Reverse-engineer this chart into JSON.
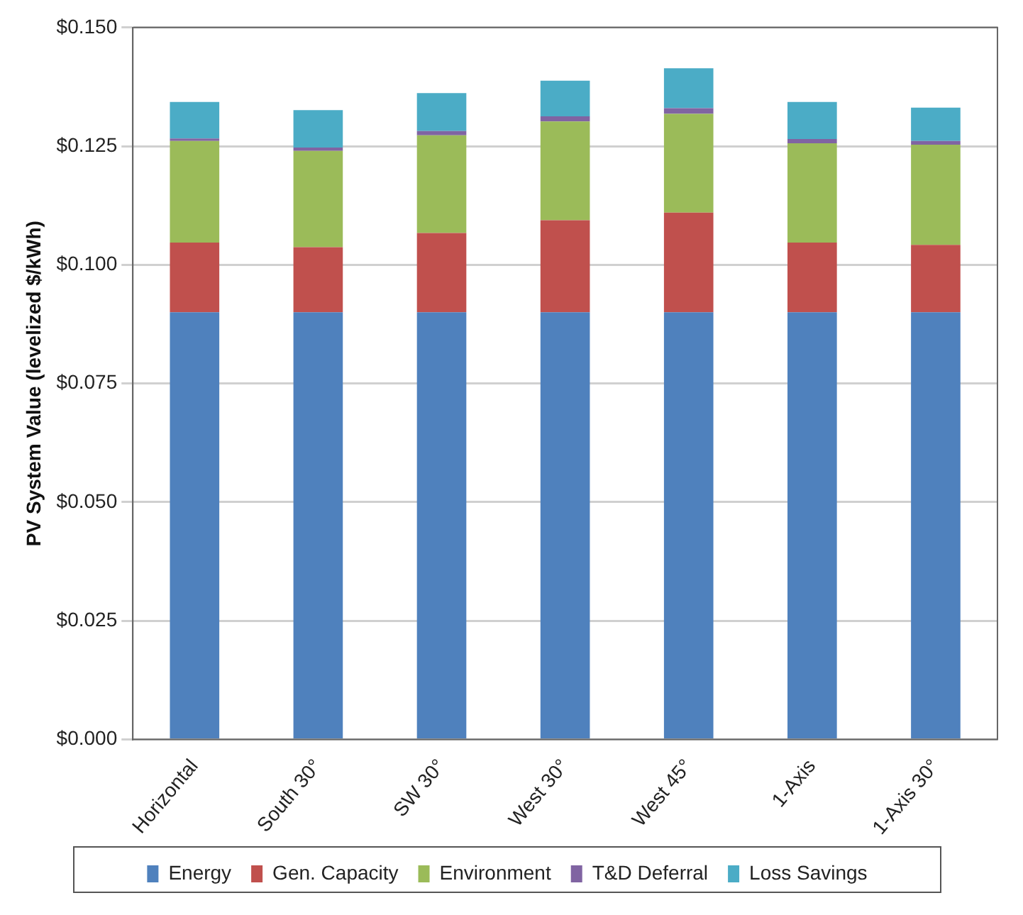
{
  "chart_data": {
    "type": "bar",
    "ylabel": "PV System Value (levelized $/kWh)",
    "categories": [
      "Horizontal",
      "South 30°",
      "SW 30°",
      "West 30°",
      "West 45°",
      "1-Axis",
      "1-Axis 30°"
    ],
    "series": [
      {
        "name": "Energy",
        "color": "#4f81bd",
        "values": [
          0.09,
          0.09,
          0.09,
          0.09,
          0.09,
          0.09,
          0.09
        ]
      },
      {
        "name": "Gen. Capacity",
        "color": "#c0504d",
        "values": [
          0.0147,
          0.0137,
          0.0167,
          0.0194,
          0.021,
          0.0147,
          0.0142
        ]
      },
      {
        "name": "Environment",
        "color": "#9bbb59",
        "values": [
          0.0214,
          0.0203,
          0.0206,
          0.0208,
          0.0208,
          0.0209,
          0.0211
        ]
      },
      {
        "name": "T&D Deferral",
        "color": "#8064a2",
        "values": [
          0.0005,
          0.0007,
          0.0009,
          0.0011,
          0.0012,
          0.0009,
          0.0008
        ]
      },
      {
        "name": "Loss Savings",
        "color": "#4bacc6",
        "values": [
          0.0077,
          0.0079,
          0.008,
          0.0075,
          0.0084,
          0.0078,
          0.007
        ]
      }
    ],
    "stacked": true,
    "ylim": [
      0,
      0.15
    ],
    "yticks": [
      {
        "value": 0,
        "label": "$0.000"
      },
      {
        "value": 0.025,
        "label": "$0.025"
      },
      {
        "value": 0.05,
        "label": "$0.050"
      },
      {
        "value": 0.075,
        "label": "$0.075"
      },
      {
        "value": 0.1,
        "label": "$0.100"
      },
      {
        "value": 0.125,
        "label": "$0.125"
      },
      {
        "value": 0.15,
        "label": "$0.150"
      }
    ],
    "grid": "y",
    "legend": "bottom"
  }
}
